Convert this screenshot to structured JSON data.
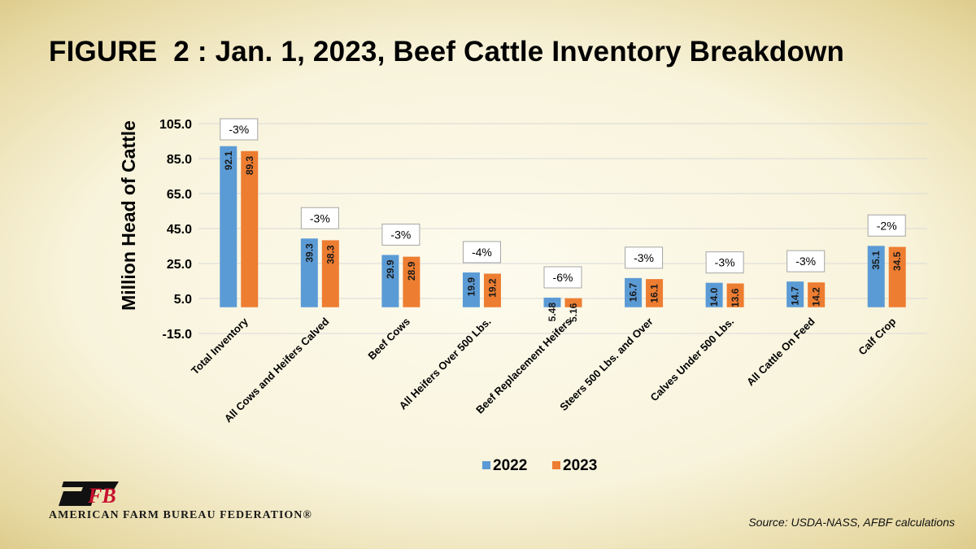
{
  "title": "FIGURE  2 : Jan. 1, 2023, Beef Cattle Inventory Breakdown",
  "organization": "AMERICAN FARM BUREAU FEDERATION®",
  "logo_text": "FB",
  "source": "Source: USDA-NASS, AFBF calculations",
  "colors": {
    "series_2022": "#5b9bd5",
    "series_2023": "#ed7d31",
    "grid": "#d9d9d9"
  },
  "chart_data": {
    "type": "bar",
    "title": "FIGURE  2 : Jan. 1, 2023, Beef Cattle Inventory Breakdown",
    "xlabel": "",
    "ylabel": "Million Head of Cattle",
    "ylim": [
      -15,
      105
    ],
    "yticks": [
      105,
      85,
      65,
      45,
      25,
      5,
      -15
    ],
    "ytick_labels": [
      "105.0",
      "85.0",
      "65.0",
      "45.0",
      "25.0",
      "5.0",
      "-15.0"
    ],
    "grid": true,
    "legend": "bottom",
    "categories": [
      "Total Inventory",
      "All Cows and Heifers Calved",
      "Beef Cows",
      "All Heifers Over 500 Lbs.",
      "Beef Replacement Heifers",
      "Steers 500 Lbs. and Over",
      "Calves Under 500 Lbs.",
      "All Cattle On Feed",
      "Calf Crop"
    ],
    "series": [
      {
        "name": "2022",
        "values": [
          92.1,
          39.3,
          29.9,
          19.9,
          5.48,
          16.7,
          14.0,
          14.7,
          35.1
        ],
        "labels": [
          "92.1",
          "39.3",
          "29.9",
          "19.9",
          "5.48",
          "16.7",
          "14.0",
          "14.7",
          "35.1"
        ]
      },
      {
        "name": "2023",
        "values": [
          89.3,
          38.3,
          28.9,
          19.2,
          5.16,
          16.1,
          13.6,
          14.2,
          34.5
        ],
        "labels": [
          "89.3",
          "38.3",
          "28.9",
          "19.2",
          "5.16",
          "16.1",
          "13.6",
          "14.2",
          "34.5"
        ]
      }
    ],
    "annotations": [
      "-3%",
      "-3%",
      "-3%",
      "-4%",
      "-6%",
      "-3%",
      "-3%",
      "-3%",
      "-2%"
    ]
  }
}
